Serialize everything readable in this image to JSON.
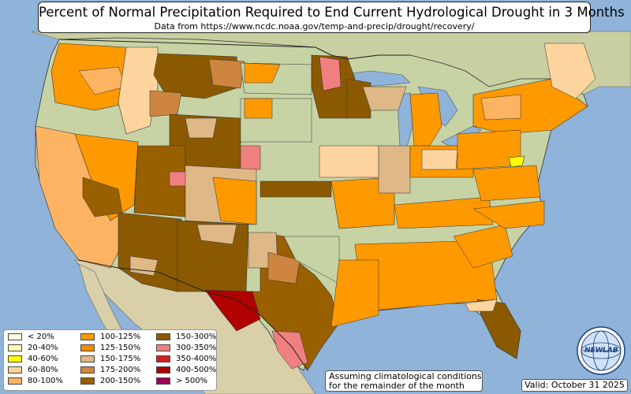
{
  "title": "Percent of Normal Precipitation Required to End Current Hydrological Drought in 3 Months",
  "subtitle": "Data from https://www.ncdc.noaa.gov/temp-and-precip/drought/recovery/",
  "legend": {
    "items": [
      {
        "label": "< 20%",
        "color": "#ffffe5"
      },
      {
        "label": "20-40%",
        "color": "#ffffb2"
      },
      {
        "label": "40-60%",
        "color": "#ffff00"
      },
      {
        "label": "60-80%",
        "color": "#fdd49e"
      },
      {
        "label": "80-100%",
        "color": "#fdb462"
      },
      {
        "label": "100-125%",
        "color": "#ff9900"
      },
      {
        "label": "125-150%",
        "color": "#f08c00"
      },
      {
        "label": "150-175%",
        "color": "#deb887"
      },
      {
        "label": "175-200%",
        "color": "#cd853f"
      },
      {
        "label": "200-150%",
        "color": "#996000"
      },
      {
        "label": "150-300%",
        "color": "#8b5a00"
      },
      {
        "label": "300-350%",
        "color": "#f08080"
      },
      {
        "label": "350-400%",
        "color": "#d42020"
      },
      {
        "label": "400-500%",
        "color": "#b00000"
      },
      {
        "label": "> 500%",
        "color": "#a0005a"
      }
    ]
  },
  "note": {
    "line1": "Assuming climatological conditions",
    "line2": "for the remainder of the month"
  },
  "valid": "Valid: October 31 2025",
  "logo": {
    "text_left": "NEW",
    "text_right": "LAB",
    "icon": "globe-logo-icon"
  },
  "colors": {
    "ocean": "#8fb3d9",
    "land": "#c7d3a4",
    "border": "#222222"
  }
}
